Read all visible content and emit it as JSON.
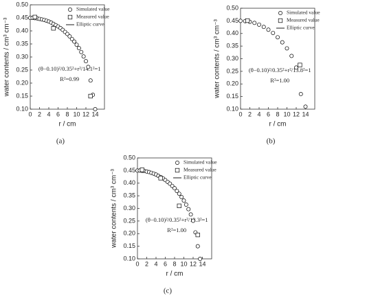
{
  "chart_data": [
    {
      "type": "scatter",
      "label": "(a)",
      "x_label": "r / cm",
      "y_label": "water contents / cm³ cm⁻³",
      "annotations": [
        "(θ−0.10)²/0.35²+r²/14.1²=1",
        "R²=0.99"
      ],
      "xlim": [
        0,
        16
      ],
      "xticks": [
        0,
        2,
        4,
        6,
        8,
        10,
        12,
        14
      ],
      "ylim": [
        0.1,
        0.5
      ],
      "yticks": [
        {
          "value": 0.1,
          "label": "0.10"
        },
        {
          "value": 0.15,
          "label": "0.15"
        },
        {
          "value": 0.2,
          "label": "0.20"
        },
        {
          "value": 0.25,
          "label": "0.25"
        },
        {
          "value": 0.3,
          "label": "0.30"
        },
        {
          "value": 0.35,
          "label": "0.35"
        },
        {
          "value": 0.4,
          "label": "0.40"
        },
        {
          "value": 0.45,
          "label": "0.45"
        },
        {
          "value": 0.5,
          "label": "0.50"
        }
      ],
      "legend": "upper right",
      "series": [
        {
          "name": "Simulated value",
          "marker": "circle",
          "color": "#000000",
          "x": [
            0,
            0.5,
            1,
            1.5,
            2,
            2.5,
            3,
            3.5,
            4,
            4.5,
            5,
            5.5,
            6,
            6.5,
            7,
            7.5,
            8,
            8.5,
            9,
            9.5,
            10,
            10.5,
            11,
            11.5,
            12,
            12.5,
            13,
            13.5,
            14
          ],
          "values": [
            0.45,
            0.45,
            0.449,
            0.448,
            0.446,
            0.444,
            0.442,
            0.439,
            0.436,
            0.432,
            0.427,
            0.422,
            0.417,
            0.411,
            0.404,
            0.396,
            0.388,
            0.379,
            0.369,
            0.359,
            0.347,
            0.334,
            0.319,
            0.302,
            0.284,
            0.262,
            0.21,
            0.155,
            0.1
          ]
        },
        {
          "name": "Measured value",
          "marker": "square",
          "color": "#000000",
          "x": [
            1,
            5,
            13
          ],
          "values": [
            0.453,
            0.41,
            0.15
          ]
        },
        {
          "name": "Elliptic curve",
          "marker": "line",
          "color": "#000000",
          "x": [
            0,
            2,
            4,
            6,
            8,
            10,
            11,
            12,
            12.5,
            13,
            13.5,
            13.8,
            14,
            14.1
          ],
          "values": [
            0.45,
            0.446,
            0.436,
            0.417,
            0.388,
            0.347,
            0.319,
            0.284,
            0.262,
            0.236,
            0.201,
            0.172,
            0.142,
            0.1
          ]
        }
      ]
    },
    {
      "type": "scatter",
      "label": "(b)",
      "x_label": "r / cm",
      "y_label": "water contents / cm³ cm⁻³",
      "annotations": [
        "(θ−0.10)²/0.35²+r²/13.8²=1",
        "R²=1.00"
      ],
      "xlim": [
        0,
        16
      ],
      "xticks": [
        0,
        2,
        4,
        6,
        8,
        10,
        12,
        14
      ],
      "ylim": [
        0.1,
        0.5
      ],
      "yticks": [
        {
          "value": 0.1,
          "label": "0.10"
        },
        {
          "value": 0.15,
          "label": "0.15"
        },
        {
          "value": 0.2,
          "label": "0.20"
        },
        {
          "value": 0.25,
          "label": "0.25"
        },
        {
          "value": 0.3,
          "label": "0.30"
        },
        {
          "value": 0.35,
          "label": "0.35"
        },
        {
          "value": 0.4,
          "label": "0.40"
        },
        {
          "value": 0.45,
          "label": "0.45"
        },
        {
          "value": 0.5,
          "label": "0.50"
        }
      ],
      "legend": "upper right",
      "series": [
        {
          "name": "Simulated value",
          "marker": "circle",
          "color": "#000000",
          "x": [
            0,
            1,
            2,
            3,
            4,
            5,
            6,
            7,
            8,
            9,
            10,
            11,
            12,
            13,
            14
          ],
          "values": [
            0.45,
            0.449,
            0.446,
            0.442,
            0.435,
            0.426,
            0.415,
            0.402,
            0.385,
            0.365,
            0.341,
            0.311,
            0.265,
            0.16,
            0.11
          ]
        },
        {
          "name": "Measured value",
          "marker": "square",
          "color": "#000000",
          "x": [
            1.5,
            12.8
          ],
          "values": [
            0.451,
            0.275
          ]
        },
        {
          "name": "Elliptic curve",
          "marker": "line",
          "color": "#000000",
          "x": [
            0,
            2,
            4,
            6,
            8,
            10,
            11,
            12,
            12.5,
            13,
            13.5,
            13.8
          ],
          "values": [
            0.45,
            0.446,
            0.435,
            0.415,
            0.385,
            0.341,
            0.311,
            0.273,
            0.248,
            0.217,
            0.172,
            0.1
          ]
        }
      ]
    },
    {
      "type": "scatter",
      "label": "(c)",
      "x_label": "r / cm",
      "y_label": "water contents / cm³ cm⁻³",
      "annotations": [
        "(θ−0.10)²/0.35²+r²/13.3²=1",
        "R²=1.00"
      ],
      "xlim": [
        0,
        16
      ],
      "xticks": [
        0,
        2,
        4,
        6,
        8,
        10,
        12,
        14
      ],
      "ylim": [
        0.1,
        0.5
      ],
      "yticks": [
        {
          "value": 0.1,
          "label": "0.10"
        },
        {
          "value": 0.15,
          "label": "0.15"
        },
        {
          "value": 0.2,
          "label": "0.20"
        },
        {
          "value": 0.25,
          "label": "0.25"
        },
        {
          "value": 0.3,
          "label": "0.30"
        },
        {
          "value": 0.35,
          "label": "0.35"
        },
        {
          "value": 0.4,
          "label": "0.40"
        },
        {
          "value": 0.45,
          "label": "0.45"
        },
        {
          "value": 0.5,
          "label": "0.50"
        }
      ],
      "legend": "upper right",
      "series": [
        {
          "name": "Simulated value",
          "marker": "circle",
          "color": "#000000",
          "x": [
            0,
            0.5,
            1,
            1.5,
            2,
            2.5,
            3,
            3.5,
            4,
            4.5,
            5,
            5.5,
            6,
            6.5,
            7,
            7.5,
            8,
            8.5,
            9,
            9.5,
            10,
            10.5,
            11,
            11.5,
            12,
            12.5,
            13,
            13.5
          ],
          "values": [
            0.45,
            0.45,
            0.449,
            0.448,
            0.446,
            0.444,
            0.441,
            0.438,
            0.434,
            0.429,
            0.424,
            0.419,
            0.412,
            0.405,
            0.398,
            0.389,
            0.38,
            0.369,
            0.358,
            0.345,
            0.331,
            0.315,
            0.297,
            0.276,
            0.251,
            0.205,
            0.15,
            0.1
          ]
        },
        {
          "name": "Measured value",
          "marker": "square",
          "color": "#000000",
          "x": [
            1,
            5,
            9,
            13
          ],
          "values": [
            0.453,
            0.42,
            0.31,
            0.195
          ]
        },
        {
          "name": "Elliptic curve",
          "marker": "line",
          "color": "#000000",
          "x": [
            0,
            2,
            4,
            6,
            8,
            10,
            11,
            12,
            12.5,
            13,
            13.2,
            13.3
          ],
          "values": [
            0.45,
            0.446,
            0.434,
            0.412,
            0.38,
            0.331,
            0.297,
            0.251,
            0.22,
            0.174,
            0.143,
            0.1
          ]
        }
      ]
    }
  ]
}
